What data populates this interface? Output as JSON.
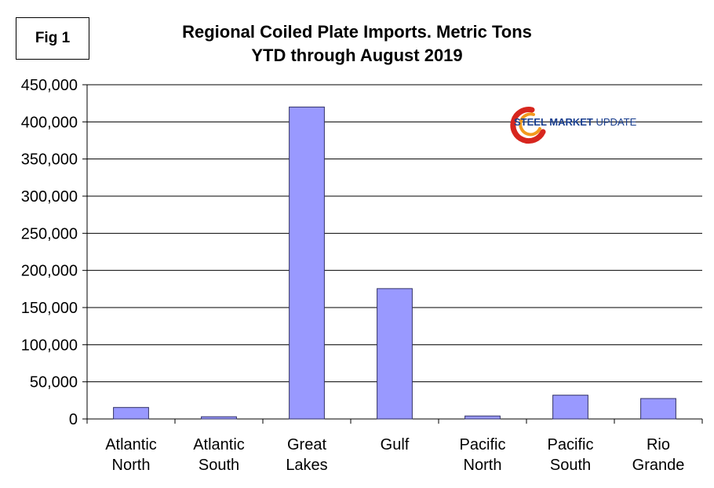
{
  "figure_label": "Fig 1",
  "logo": {
    "text_bold": "STEEL MARKET",
    "text_normal": " UPDATE",
    "colors": {
      "text": "#1a3f8f",
      "swoosh_red": "#d7261e",
      "swoosh_orange": "#f39a1e"
    }
  },
  "colors": {
    "bar_fill": "#9999ff",
    "bar_stroke": "#333366",
    "grid": "#000000",
    "background": "#ffffff"
  },
  "chart_data": {
    "type": "bar",
    "title": "Regional Coiled Plate Imports. Metric Tons",
    "subtitle": "YTD through August 2019",
    "xlabel": "",
    "ylabel": "",
    "categories": [
      [
        "Atlantic",
        "North"
      ],
      [
        "Atlantic",
        "South"
      ],
      [
        "Great",
        "Lakes"
      ],
      [
        "Gulf"
      ],
      [
        "Pacific",
        "North"
      ],
      [
        "Pacific",
        "South"
      ],
      [
        "Rio",
        "Grande"
      ]
    ],
    "values": [
      15500,
      3000,
      420000,
      175500,
      4000,
      32000,
      27500
    ],
    "ylim": [
      0,
      450000
    ],
    "yticks": [
      0,
      50000,
      100000,
      150000,
      200000,
      250000,
      300000,
      350000,
      400000,
      450000
    ],
    "ytick_labels": [
      "0",
      "50,000",
      "100,000",
      "150,000",
      "200,000",
      "250,000",
      "300,000",
      "350,000",
      "400,000",
      "450,000"
    ],
    "grid": true,
    "legend": "none"
  }
}
